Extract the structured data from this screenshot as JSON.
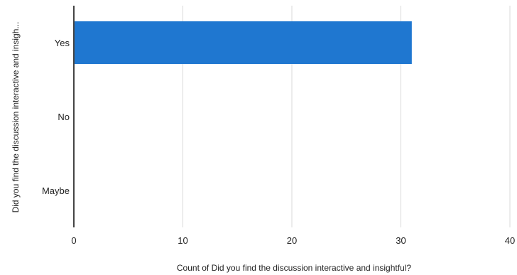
{
  "chart_data": {
    "type": "bar",
    "orientation": "horizontal",
    "categories": [
      "Yes",
      "No",
      "Maybe"
    ],
    "values": [
      31,
      0,
      0
    ],
    "title": "",
    "xlabel": "Count of Did you find the discussion interactive and insightful?",
    "ylabel": "Did you find the discussion interactive and insigh...",
    "xlim": [
      0,
      40
    ],
    "x_ticks": [
      "0",
      "10",
      "20",
      "30",
      "40"
    ],
    "grid": true,
    "legend": "none",
    "colors": {
      "bar": "#1f77d0",
      "grid": "#d9d9d9",
      "axis": "#444444"
    }
  }
}
